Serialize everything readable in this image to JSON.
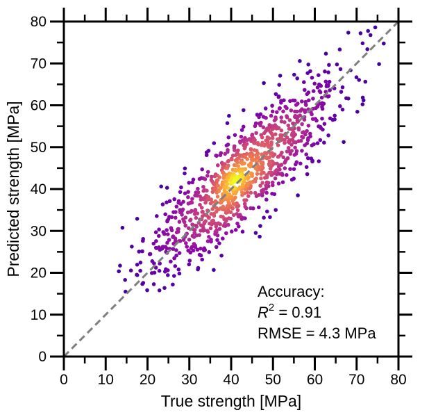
{
  "chart_data": {
    "type": "scatter",
    "title": "",
    "xlabel": "True strength [MPa]",
    "ylabel": "Predicted strength [MPa]",
    "xlim": [
      0,
      80
    ],
    "ylim": [
      0,
      80
    ],
    "major_ticks": [
      0,
      10,
      20,
      30,
      40,
      50,
      60,
      70,
      80
    ],
    "x_tick_labels": [
      "0",
      "10",
      "20",
      "30",
      "40",
      "50",
      "60",
      "70",
      "80"
    ],
    "y_tick_labels": [
      "0",
      "10",
      "20",
      "30",
      "40",
      "50",
      "60",
      "70",
      "80"
    ],
    "grid": false,
    "reference_line": {
      "style": "dashed",
      "color": "#7f7f7f",
      "from": [
        0,
        0
      ],
      "to": [
        80,
        80
      ]
    },
    "colormap": "plasma (point density)",
    "point_count": 1030,
    "data_summary": {
      "x_range": [
        12,
        79
      ],
      "y_range": [
        15,
        79
      ],
      "center": [
        43,
        43
      ],
      "residual_sd_mpa": 4.3
    },
    "annotation": {
      "line1": "Accuracy:",
      "r2_symbol": "R",
      "r2_exponent": "2",
      "r2_value": " = 0.91",
      "line3": "RMSE = 4.3 MPa"
    }
  }
}
